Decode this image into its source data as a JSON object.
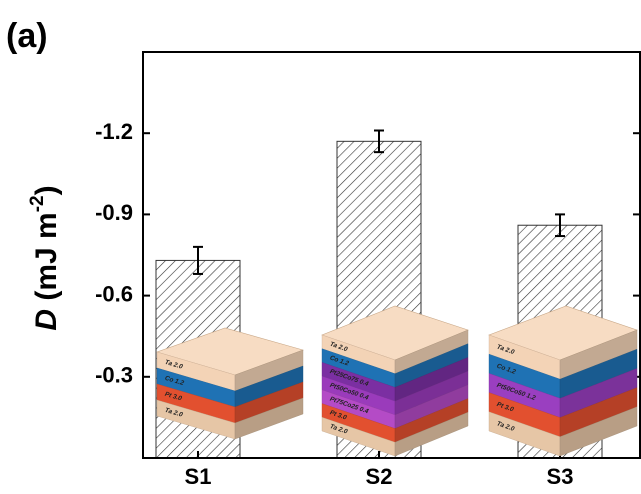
{
  "chart_data": {
    "type": "bar",
    "panel_label": "(a)",
    "y_label": [
      "D",
      " (mJ m",
      "-2",
      ")"
    ],
    "categories": [
      "S1",
      "S2",
      "S3"
    ],
    "values": [
      -0.73,
      -1.17,
      -0.86
    ],
    "errors": [
      0.05,
      0.04,
      0.04
    ],
    "color": "#ffffff",
    "hatch": true,
    "ylim": [
      0,
      -1.5
    ],
    "yticks": [
      -1.2,
      -0.9,
      -0.6,
      -0.3
    ],
    "insets": [
      {
        "layers": [
          {
            "label": "Ta 2.0",
            "color": "#f3d3b6"
          },
          {
            "label": "Co 1.2",
            "color": "#1f72b4"
          },
          {
            "label": "Pt 3.0",
            "color": "#e2502f"
          },
          {
            "label": "Ta 2.0",
            "color": "#e6c6a6"
          }
        ]
      },
      {
        "layers": [
          {
            "label": "Ta 2.0",
            "color": "#f3d3b6"
          },
          {
            "label": "Co 1.2",
            "color": "#1f72b4"
          },
          {
            "label": "Pt25Co75 0.4",
            "color": "#7b2fa2"
          },
          {
            "label": "Pt50Co50 0.4",
            "color": "#9a3bbb"
          },
          {
            "label": "Pt75Co25 0.4",
            "color": "#b44bc6"
          },
          {
            "label": "Pt 3.0",
            "color": "#e2502f"
          },
          {
            "label": "Ta 2.0",
            "color": "#e6c6a6"
          }
        ]
      },
      {
        "layers": [
          {
            "label": "Ta 2.0",
            "color": "#f3d3b6"
          },
          {
            "label": "Co 1.2",
            "color": "#1f72b4"
          },
          {
            "label": "Pt50Co50 1.2",
            "color": "#9a3fc0"
          },
          {
            "label": "Pt 3.0",
            "color": "#e2502f"
          },
          {
            "label": "Ta 2.0",
            "color": "#e6c6a6"
          }
        ]
      }
    ]
  }
}
